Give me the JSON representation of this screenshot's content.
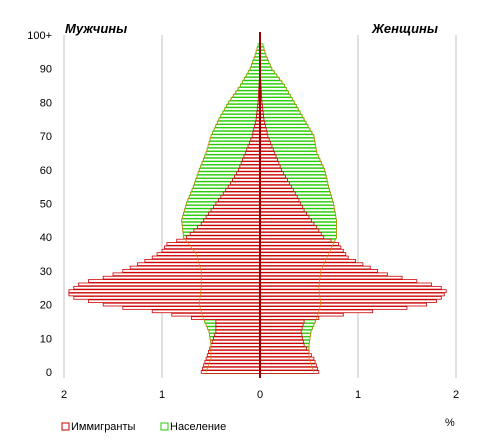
{
  "chart_data": {
    "type": "bar",
    "orientation": "horizontal-population-pyramid",
    "labels": {
      "male": "Мужчины",
      "female": "Женщины",
      "unit": "%"
    },
    "y_ticks": [
      "0",
      "10",
      "20",
      "30",
      "40",
      "50",
      "60",
      "70",
      "80",
      "90",
      "100+"
    ],
    "x_ticks": [
      "2",
      "1",
      "0",
      "1",
      "2"
    ],
    "xlim": [
      -2,
      2
    ],
    "ylim": [
      0,
      100
    ],
    "grid": "vertical",
    "legend_position": "bottom-left",
    "colors": {
      "immigrants": "#cc0000",
      "population": "#22cc00",
      "axis": "#990000",
      "grid": "#c0c0c0"
    },
    "series": [
      {
        "name": "Иммигранты",
        "key": "immigrants",
        "x_age": [
          0,
          4,
          8,
          12,
          15,
          16,
          17,
          18,
          19,
          20,
          21,
          22,
          23,
          24,
          25,
          26,
          27,
          28,
          29,
          30,
          32,
          34,
          36,
          38,
          40,
          44,
          48,
          52,
          56,
          60,
          65,
          70,
          75,
          80,
          85,
          90
        ],
        "male": [
          0.6,
          0.55,
          0.5,
          0.45,
          0.45,
          0.7,
          0.9,
          1.1,
          1.4,
          1.6,
          1.75,
          1.9,
          1.95,
          1.95,
          1.9,
          1.85,
          1.75,
          1.6,
          1.5,
          1.4,
          1.25,
          1.1,
          1.0,
          0.95,
          0.75,
          0.6,
          0.5,
          0.4,
          0.3,
          0.22,
          0.15,
          0.08,
          0.04,
          0.02,
          0.01,
          0.0
        ],
        "female": [
          0.6,
          0.55,
          0.45,
          0.42,
          0.45,
          0.6,
          0.85,
          1.15,
          1.5,
          1.7,
          1.8,
          1.85,
          1.88,
          1.9,
          1.85,
          1.75,
          1.6,
          1.45,
          1.3,
          1.2,
          1.05,
          0.9,
          0.85,
          0.8,
          0.65,
          0.55,
          0.45,
          0.38,
          0.3,
          0.22,
          0.15,
          0.08,
          0.04,
          0.02,
          0.01,
          0.0
        ]
      },
      {
        "name": "Население",
        "key": "population",
        "x_age": [
          0,
          4,
          8,
          12,
          16,
          20,
          25,
          30,
          35,
          40,
          45,
          50,
          55,
          60,
          65,
          70,
          75,
          80,
          85,
          90,
          94,
          97
        ],
        "male": [
          0.55,
          0.5,
          0.5,
          0.52,
          0.58,
          0.62,
          0.6,
          0.6,
          0.65,
          0.78,
          0.8,
          0.75,
          0.68,
          0.62,
          0.55,
          0.5,
          0.42,
          0.32,
          0.2,
          0.1,
          0.05,
          0.02
        ],
        "female": [
          0.55,
          0.5,
          0.5,
          0.52,
          0.58,
          0.62,
          0.6,
          0.62,
          0.7,
          0.78,
          0.78,
          0.75,
          0.7,
          0.66,
          0.58,
          0.55,
          0.45,
          0.35,
          0.25,
          0.12,
          0.06,
          0.03
        ]
      }
    ]
  }
}
